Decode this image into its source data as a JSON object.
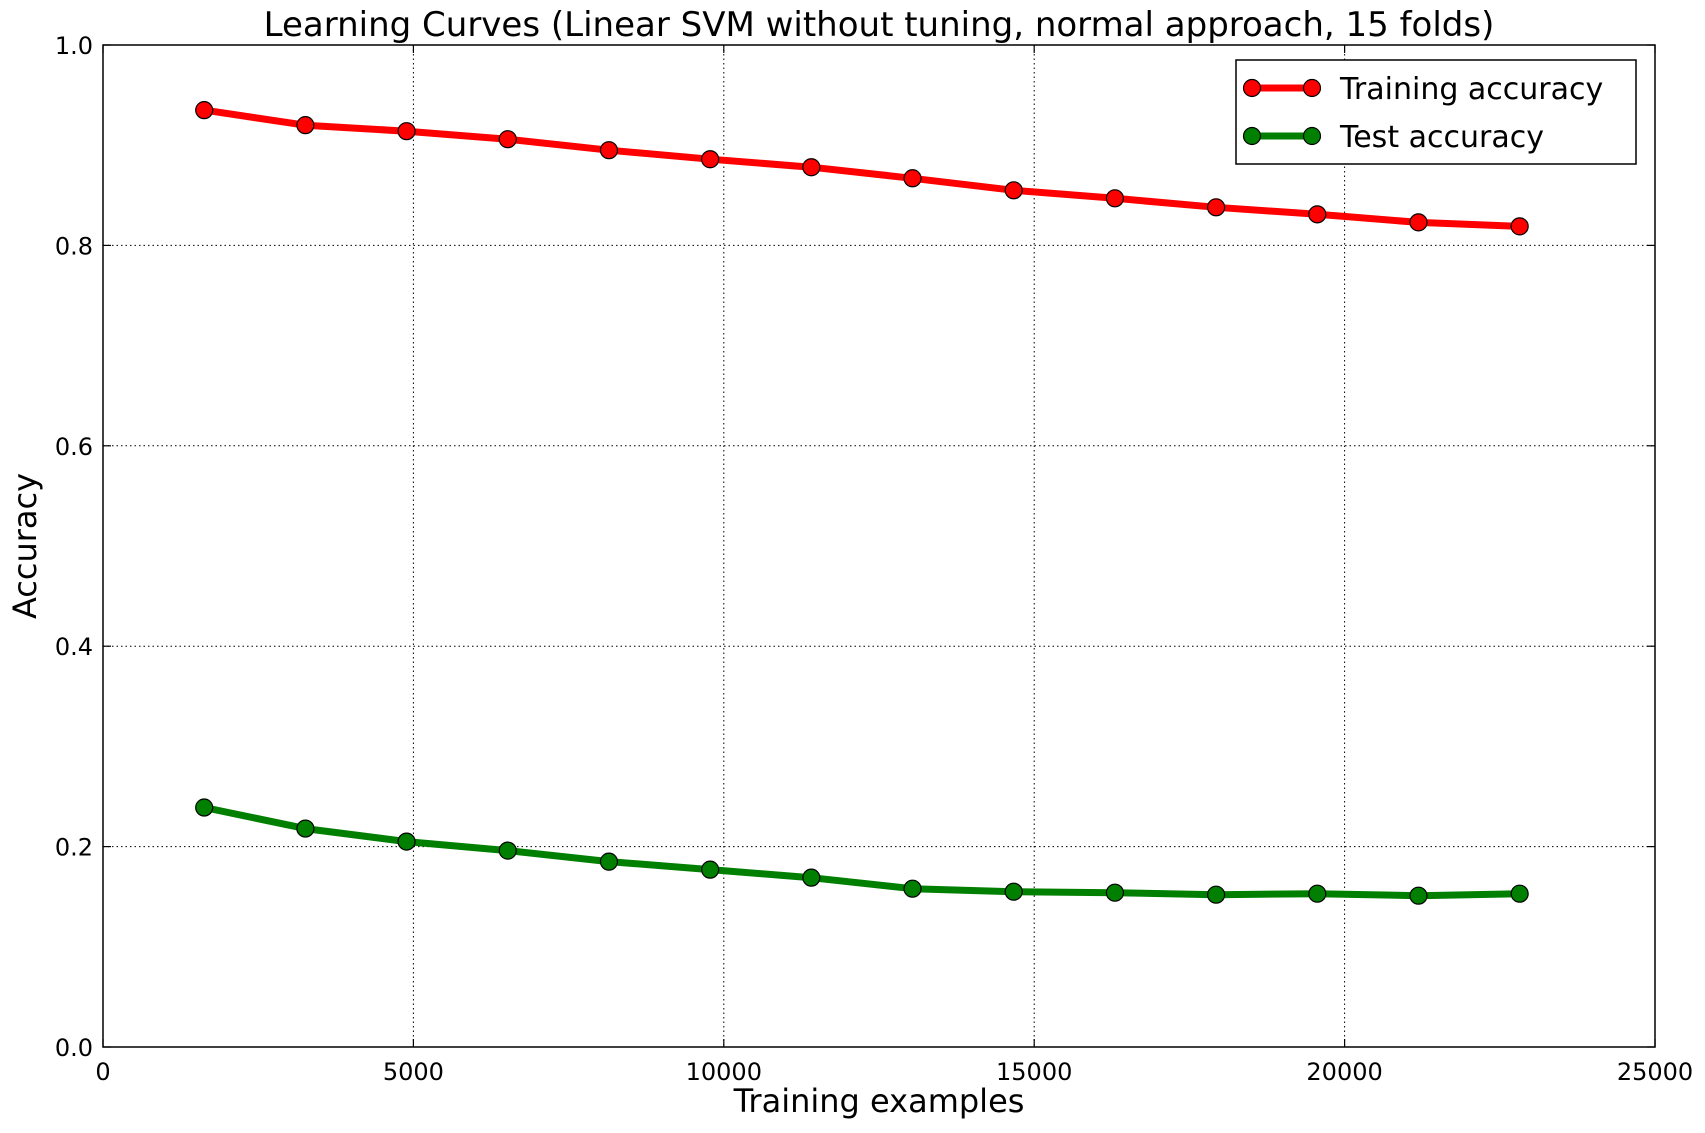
{
  "chart_data": {
    "type": "line",
    "title": "Learning Curves (Linear SVM without tuning, normal approach, 15 folds)",
    "xlabel": "Training examples",
    "ylabel": "Accuracy",
    "xlim": [
      0,
      25000
    ],
    "ylim": [
      0.0,
      1.0
    ],
    "xticks": [
      0,
      5000,
      10000,
      15000,
      20000,
      25000
    ],
    "xtick_labels": [
      "0",
      "5000",
      "10000",
      "15000",
      "20000",
      "25000"
    ],
    "yticks": [
      0.0,
      0.2,
      0.4,
      0.6,
      0.8,
      1.0
    ],
    "ytick_labels": [
      "0.0",
      "0.2",
      "0.4",
      "0.6",
      "0.8",
      "1.0"
    ],
    "grid": true,
    "legend_position": "top-right",
    "x": [
      1630,
      3260,
      4890,
      6520,
      8150,
      9780,
      11410,
      13040,
      14670,
      16300,
      17930,
      19560,
      21190,
      22820
    ],
    "series": [
      {
        "name": "Training accuracy",
        "color": "#ff0000",
        "marker": "circle",
        "values": [
          0.935,
          0.92,
          0.914,
          0.906,
          0.895,
          0.886,
          0.878,
          0.867,
          0.855,
          0.847,
          0.838,
          0.831,
          0.823,
          0.819
        ]
      },
      {
        "name": "Test accuracy",
        "color": "#007f00",
        "marker": "circle",
        "values": [
          0.239,
          0.218,
          0.205,
          0.196,
          0.185,
          0.177,
          0.169,
          0.158,
          0.155,
          0.154,
          0.152,
          0.153,
          0.151,
          0.153
        ]
      }
    ]
  }
}
